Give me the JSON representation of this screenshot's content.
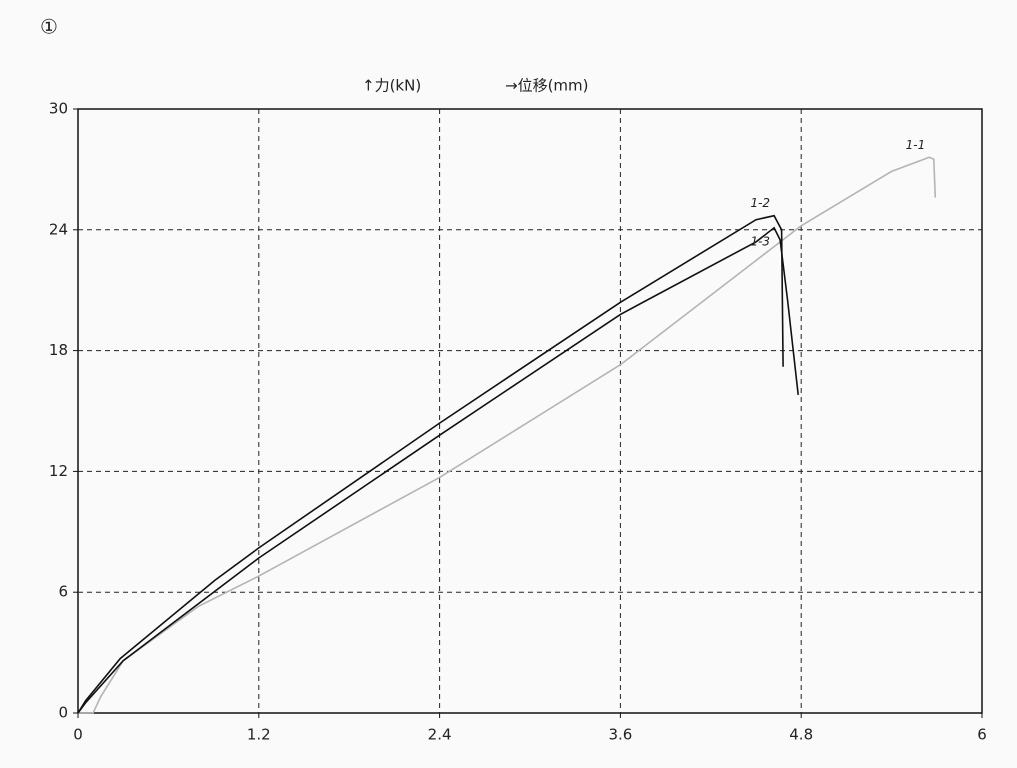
{
  "chart_data": {
    "type": "line",
    "annotation": "①",
    "y_label": "↑力(kN)",
    "x_label": "→位移(mm)",
    "xlim": [
      0,
      6
    ],
    "xticks": [
      0,
      1.2,
      2.4,
      3.6,
      4.8,
      6
    ],
    "ylim": [
      0,
      30
    ],
    "yticks": [
      0,
      6,
      12,
      18,
      24,
      30
    ],
    "grid": true,
    "series": [
      {
        "name": "1-1",
        "color": "#b4b4b4",
        "x": [
          0,
          0.1,
          0.15,
          0.3,
          0.8,
          1.2,
          2.4,
          3.6,
          4.8,
          5.4,
          5.65,
          5.68,
          5.69
        ],
        "values": [
          0,
          0,
          0.8,
          2.6,
          5.3,
          6.8,
          11.7,
          17.3,
          24.2,
          26.9,
          27.6,
          27.5,
          25.6
        ]
      },
      {
        "name": "1-2",
        "color": "#111111",
        "x": [
          0,
          0.05,
          0.28,
          0.91,
          1.2,
          2.4,
          3.6,
          4.5,
          4.62,
          4.67,
          4.68
        ],
        "values": [
          0,
          0.6,
          2.7,
          6.6,
          8.2,
          14.4,
          20.4,
          24.5,
          24.7,
          24.0,
          17.2
        ]
      },
      {
        "name": "1-3",
        "color": "#111111",
        "x": [
          0,
          0.05,
          0.3,
          1.2,
          2.4,
          3.6,
          4.5,
          4.62,
          4.66,
          4.71,
          4.78
        ],
        "values": [
          0,
          0.5,
          2.6,
          7.7,
          13.8,
          19.8,
          23.4,
          24.1,
          23.5,
          20.5,
          15.8
        ]
      }
    ]
  }
}
